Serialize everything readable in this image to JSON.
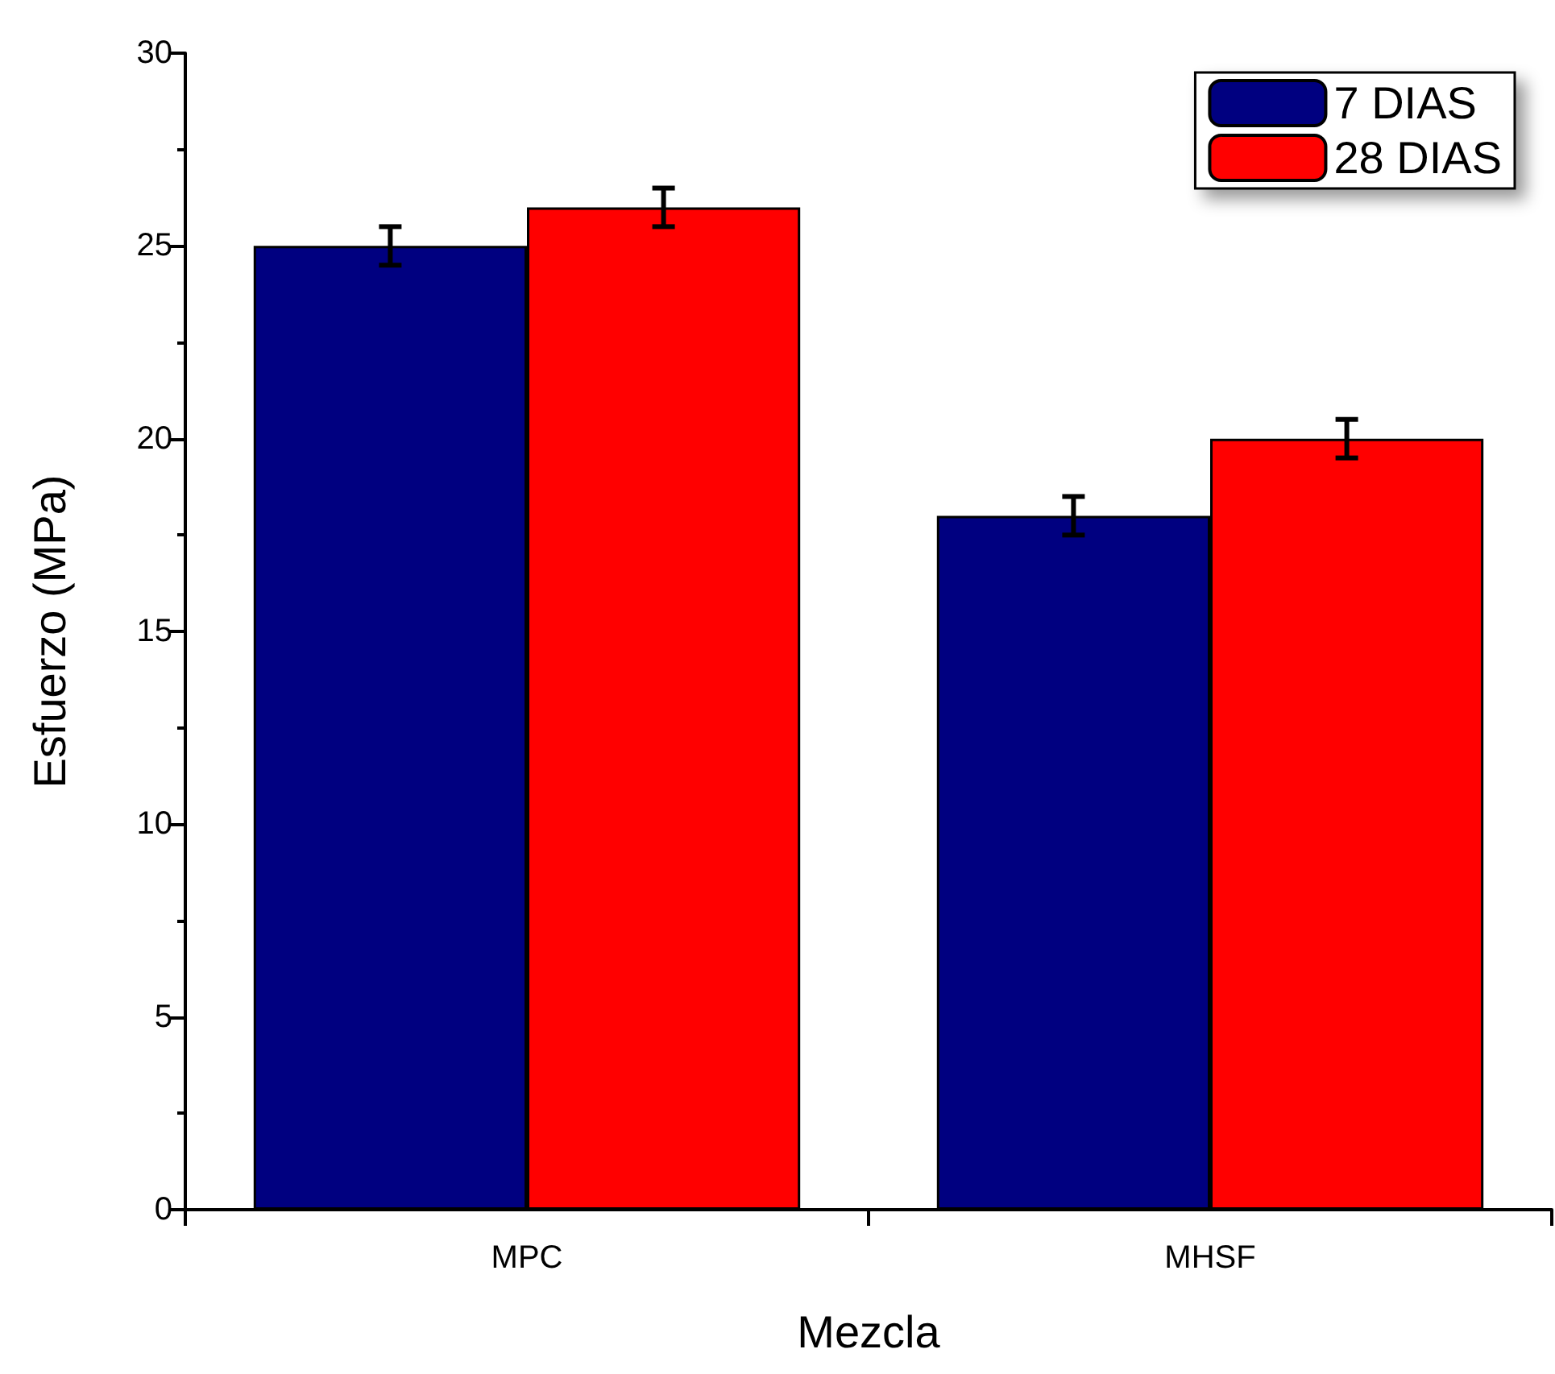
{
  "chart_data": {
    "type": "bar",
    "xlabel": "Mezcla",
    "ylabel": "Esfuerzo (MPa)",
    "categories": [
      "MPC",
      "MHSF"
    ],
    "series": [
      {
        "name": "7 DIAS",
        "color": "#000080",
        "values": [
          25,
          18
        ],
        "errors": [
          0.5,
          0.5
        ]
      },
      {
        "name": "28 DIAS",
        "color": "#ff0000",
        "values": [
          26,
          20
        ],
        "errors": [
          0.5,
          0.5
        ]
      }
    ],
    "ylim": [
      0,
      30
    ],
    "yticks": [
      0,
      5,
      10,
      15,
      20,
      25,
      30
    ],
    "grid": false,
    "legend": "top right"
  }
}
